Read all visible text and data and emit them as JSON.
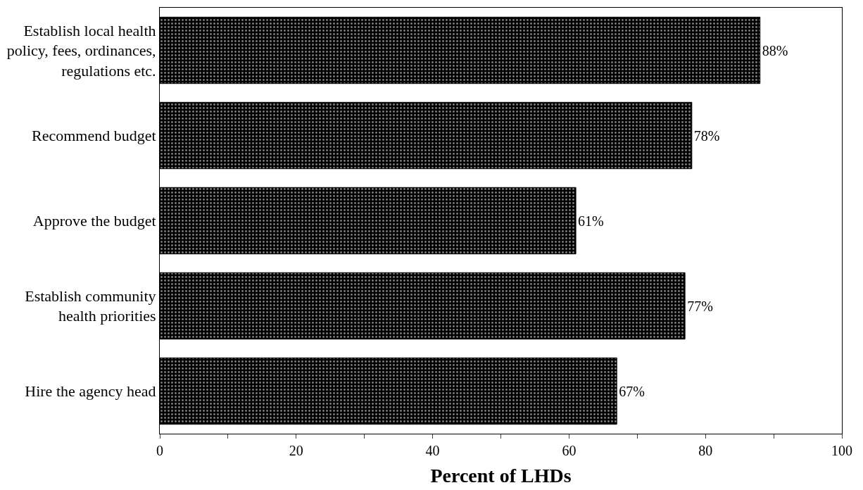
{
  "chart_data": {
    "type": "bar",
    "orientation": "horizontal",
    "xlabel": "Percent of LHDs",
    "categories": [
      "Establish local health policy, fees, ordinances, regulations etc.",
      "Recommend budget",
      "Approve the budget",
      "Establish community health priorities",
      "Hire the agency head"
    ],
    "values": [
      88,
      78,
      61,
      77,
      67
    ],
    "value_labels": [
      "88%",
      "78%",
      "61%",
      "77%",
      "67%"
    ],
    "color": "#000000",
    "xlim": [
      0,
      100
    ],
    "xticks": [
      0,
      {
        "value": 10,
        "label": null
      },
      20,
      {
        "value": 30,
        "label": null
      },
      40,
      {
        "value": 50,
        "label": null
      },
      60,
      {
        "value": 70,
        "label": null
      },
      80,
      {
        "value": 90,
        "label": null
      },
      100
    ]
  }
}
